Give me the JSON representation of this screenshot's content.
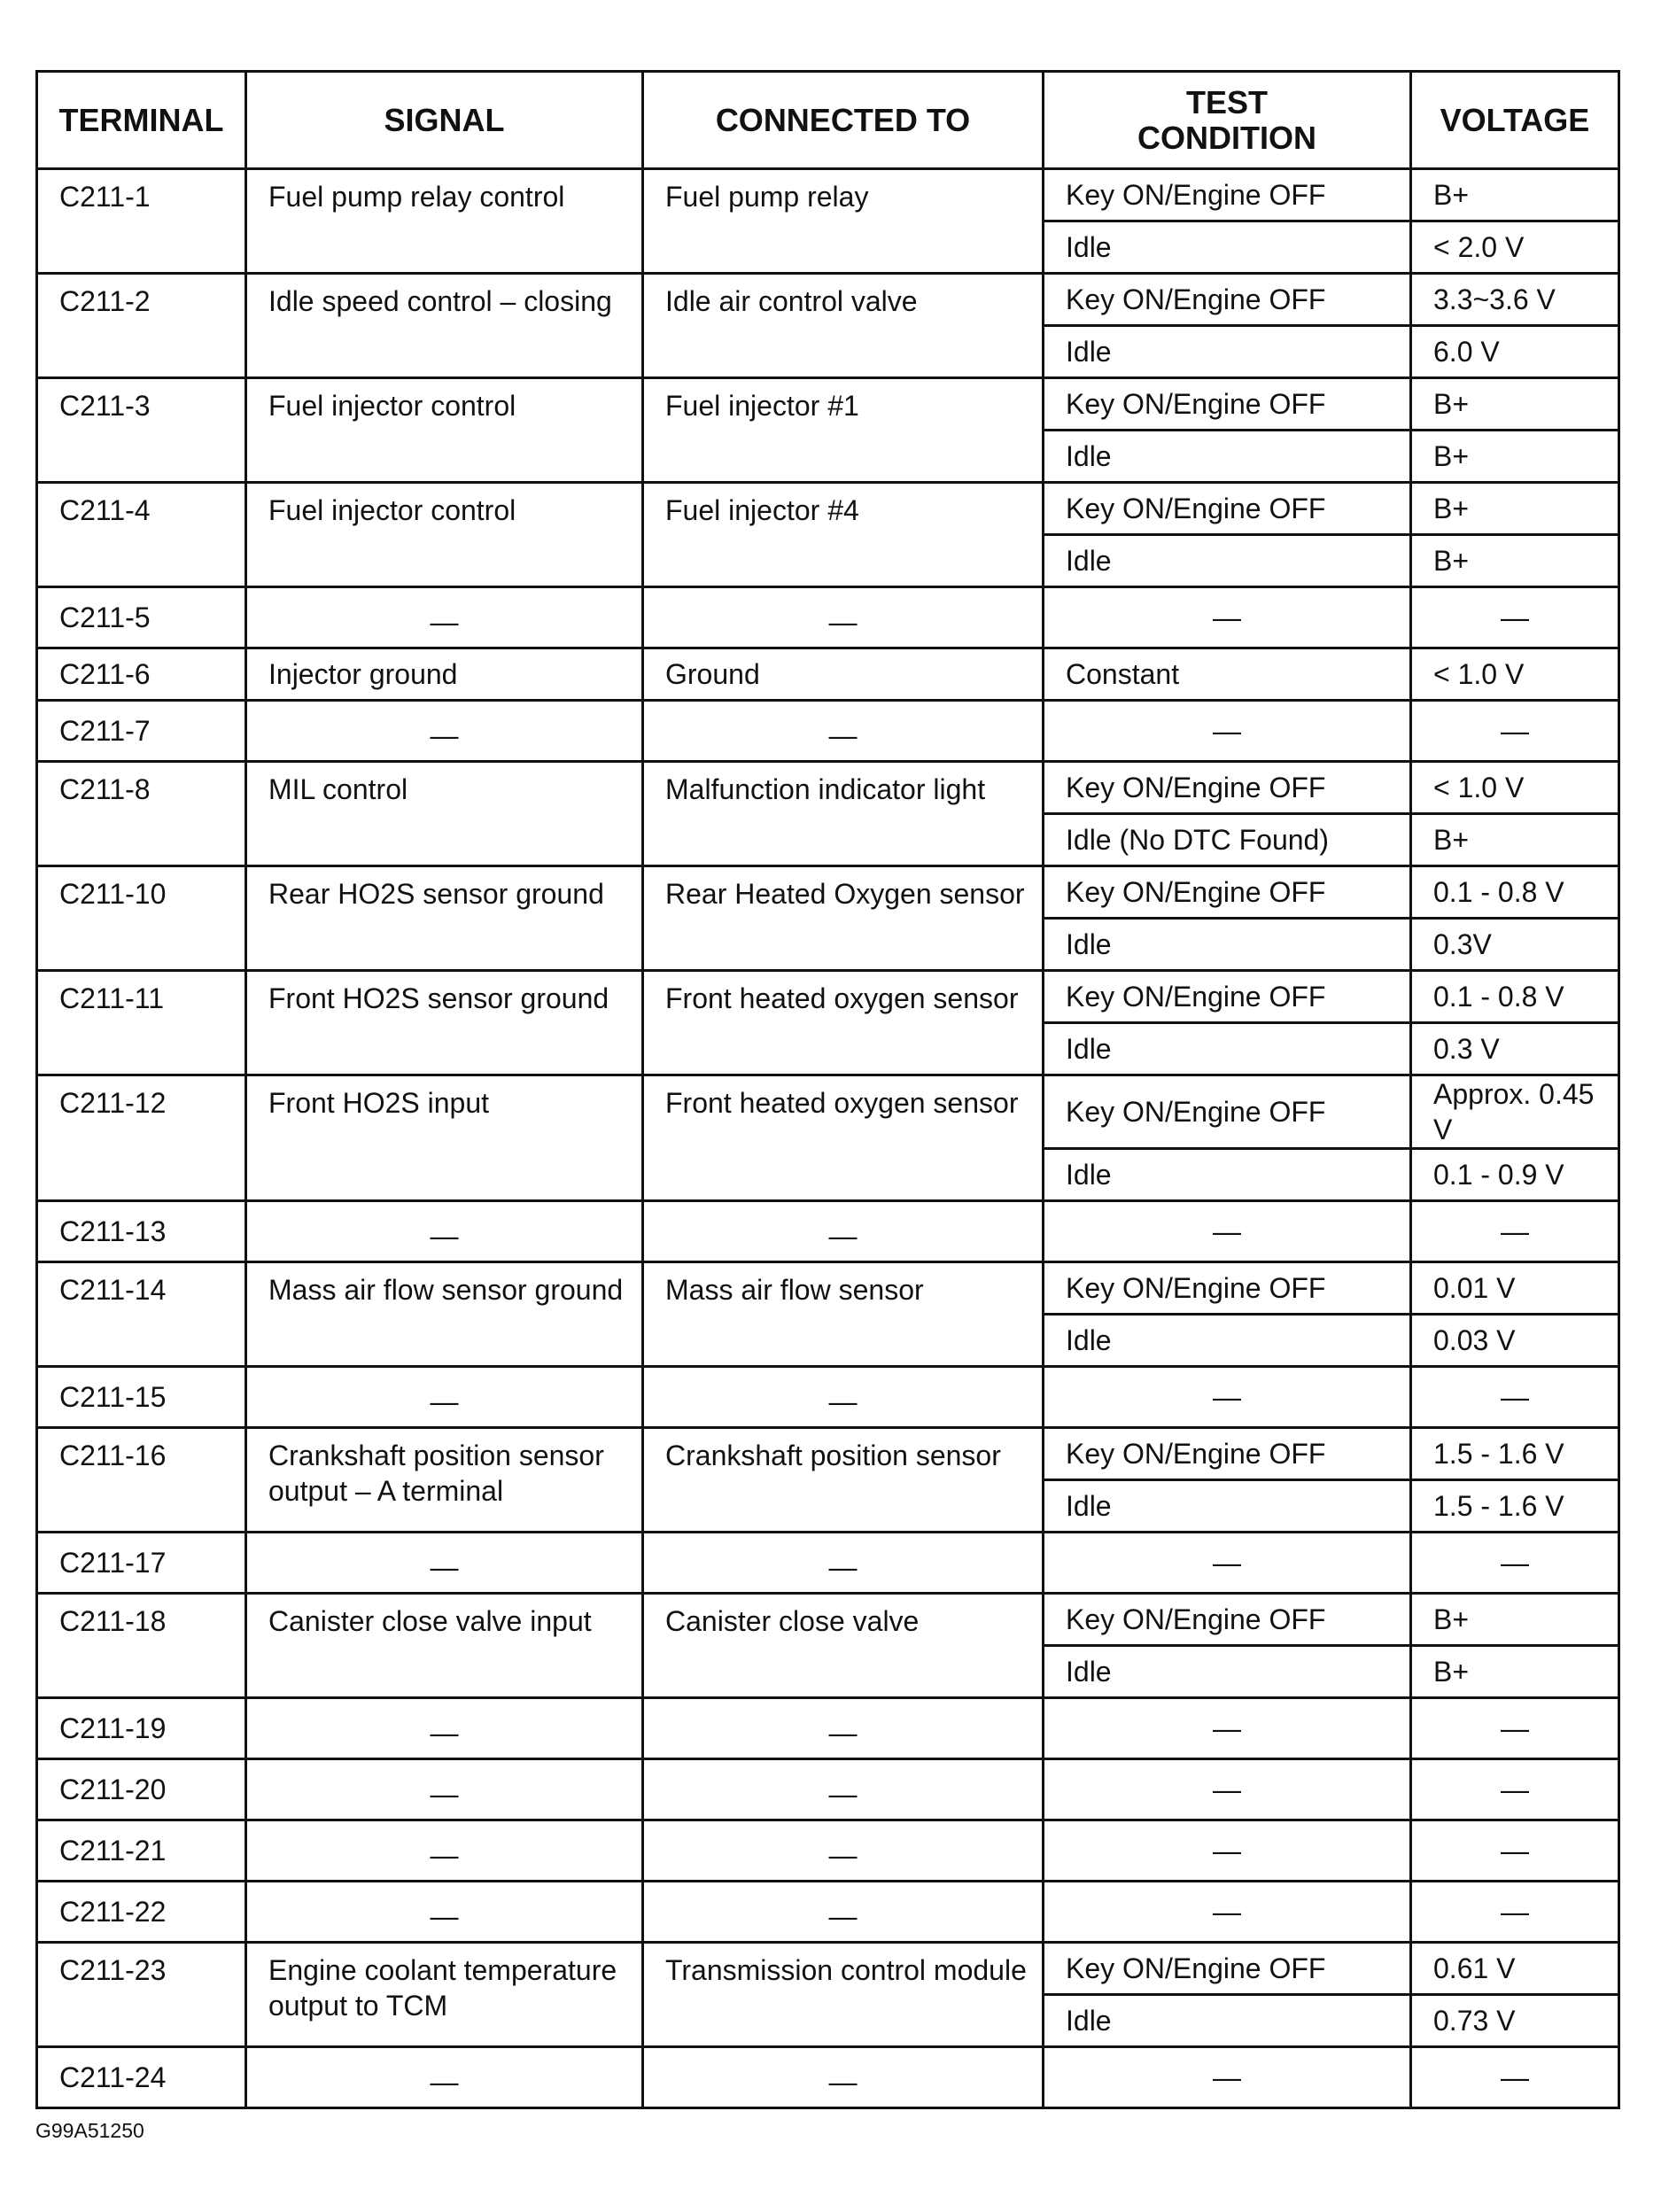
{
  "headers": {
    "terminal": "TERMINAL",
    "signal": "SIGNAL",
    "connected_to": "CONNECTED TO",
    "test_condition": "TEST CONDITION",
    "voltage": "VOLTAGE"
  },
  "rows": [
    {
      "terminal": "C211-1",
      "signal": "Fuel pump relay control",
      "connected_to": "Fuel pump relay",
      "conditions": [
        {
          "test": "Key ON/Engine OFF",
          "voltage": "B+"
        },
        {
          "test": "Idle",
          "voltage": "< 2.0 V"
        }
      ]
    },
    {
      "terminal": "C211-2",
      "signal": "Idle speed control – closing",
      "connected_to": "Idle air control valve",
      "conditions": [
        {
          "test": "Key ON/Engine OFF",
          "voltage": "3.3~3.6 V"
        },
        {
          "test": "Idle",
          "voltage": "6.0 V"
        }
      ]
    },
    {
      "terminal": "C211-3",
      "signal": "Fuel injector control",
      "connected_to": "Fuel injector #1",
      "conditions": [
        {
          "test": "Key ON/Engine OFF",
          "voltage": "B+"
        },
        {
          "test": "Idle",
          "voltage": "B+"
        }
      ]
    },
    {
      "terminal": "C211-4",
      "signal": "Fuel injector control",
      "connected_to": "Fuel injector #4",
      "conditions": [
        {
          "test": "Key ON/Engine OFF",
          "voltage": "B+"
        },
        {
          "test": "Idle",
          "voltage": "B+"
        }
      ]
    },
    {
      "terminal": "C211-5",
      "signal": "—",
      "connected_to": "—",
      "conditions": [
        {
          "test": "—",
          "voltage": "—"
        }
      ]
    },
    {
      "terminal": "C211-6",
      "signal": "Injector ground",
      "connected_to": "Ground",
      "conditions": [
        {
          "test": "Constant",
          "voltage": "< 1.0 V"
        }
      ]
    },
    {
      "terminal": "C211-7",
      "signal": "—",
      "connected_to": "—",
      "conditions": [
        {
          "test": "—",
          "voltage": "—"
        }
      ]
    },
    {
      "terminal": "C211-8",
      "signal": "MIL control",
      "connected_to": "Malfunction indicator light",
      "conditions": [
        {
          "test": "Key ON/Engine OFF",
          "voltage": "< 1.0 V"
        },
        {
          "test": "Idle (No DTC Found)",
          "voltage": "B+"
        }
      ]
    },
    {
      "terminal": "C211-10",
      "signal": "Rear HO2S sensor ground",
      "connected_to": "Rear Heated Oxygen sensor",
      "conditions": [
        {
          "test": "Key ON/Engine OFF",
          "voltage": "0.1 - 0.8 V"
        },
        {
          "test": "Idle",
          "voltage": "0.3V"
        }
      ]
    },
    {
      "terminal": "C211-11",
      "signal": "Front HO2S sensor ground",
      "connected_to": "Front heated oxygen sensor",
      "conditions": [
        {
          "test": "Key ON/Engine OFF",
          "voltage": "0.1 - 0.8 V"
        },
        {
          "test": "Idle",
          "voltage": "0.3 V"
        }
      ]
    },
    {
      "terminal": "C211-12",
      "signal": "Front HO2S input",
      "connected_to": "Front heated oxygen sensor",
      "conditions": [
        {
          "test": "Key ON/Engine OFF",
          "voltage": "Approx. 0.45 V"
        },
        {
          "test": "Idle",
          "voltage": "0.1 - 0.9 V"
        }
      ]
    },
    {
      "terminal": "C211-13",
      "signal": "—",
      "connected_to": "—",
      "conditions": [
        {
          "test": "—",
          "voltage": "—"
        }
      ]
    },
    {
      "terminal": "C211-14",
      "signal": "Mass air flow sensor ground",
      "connected_to": "Mass air flow sensor",
      "conditions": [
        {
          "test": "Key ON/Engine OFF",
          "voltage": "0.01 V"
        },
        {
          "test": "Idle",
          "voltage": "0.03 V"
        }
      ]
    },
    {
      "terminal": "C211-15",
      "signal": "—",
      "connected_to": "—",
      "conditions": [
        {
          "test": "—",
          "voltage": "—"
        }
      ]
    },
    {
      "terminal": "C211-16",
      "signal": "Crankshaft position sensor output – A terminal",
      "connected_to": "Crankshaft position sensor",
      "conditions": [
        {
          "test": "Key ON/Engine OFF",
          "voltage": "1.5 - 1.6 V"
        },
        {
          "test": "Idle",
          "voltage": "1.5 - 1.6 V"
        }
      ]
    },
    {
      "terminal": "C211-17",
      "signal": "—",
      "connected_to": "—",
      "conditions": [
        {
          "test": "—",
          "voltage": "—"
        }
      ]
    },
    {
      "terminal": "C211-18",
      "signal": "Canister close valve input",
      "connected_to": "Canister close valve",
      "conditions": [
        {
          "test": "Key ON/Engine OFF",
          "voltage": "B+"
        },
        {
          "test": "Idle",
          "voltage": "B+"
        }
      ]
    },
    {
      "terminal": "C211-19",
      "signal": "—",
      "connected_to": "—",
      "conditions": [
        {
          "test": "—",
          "voltage": "—"
        }
      ]
    },
    {
      "terminal": "C211-20",
      "signal": "—",
      "connected_to": "—",
      "conditions": [
        {
          "test": "—",
          "voltage": "—"
        }
      ]
    },
    {
      "terminal": "C211-21",
      "signal": "—",
      "connected_to": "—",
      "conditions": [
        {
          "test": "—",
          "voltage": "—"
        }
      ]
    },
    {
      "terminal": "C211-22",
      "signal": "—",
      "connected_to": "—",
      "conditions": [
        {
          "test": "—",
          "voltage": "—"
        }
      ]
    },
    {
      "terminal": "C211-23",
      "signal": "Engine coolant temperature output to TCM",
      "connected_to": "Transmission control module",
      "conditions": [
        {
          "test": "Key ON/Engine OFF",
          "voltage": "0.61 V"
        },
        {
          "test": "Idle",
          "voltage": "0.73 V"
        }
      ]
    },
    {
      "terminal": "C211-24",
      "signal": "—",
      "connected_to": "—",
      "conditions": [
        {
          "test": "—",
          "voltage": "—"
        }
      ]
    }
  ],
  "footer_code": "G99A51250"
}
